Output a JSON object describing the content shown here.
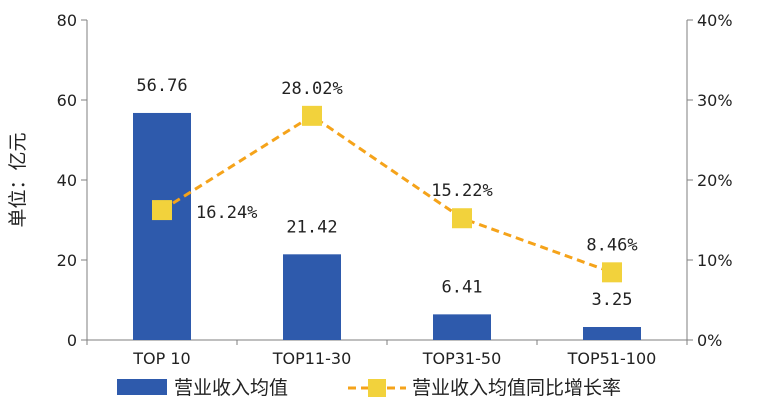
{
  "chart_data": {
    "type": "bar",
    "categories": [
      "TOP 10",
      "TOP11-30",
      "TOP31-50",
      "TOP51-100"
    ],
    "series": [
      {
        "name": "营业收入均值",
        "type": "bar",
        "axis": "left",
        "values": [
          56.76,
          21.42,
          6.41,
          3.25
        ],
        "labels": [
          "56.76",
          "21.42",
          "6.41",
          "3.25"
        ],
        "color": "#2E5AAC"
      },
      {
        "name": "营业收入均值同比增长率",
        "type": "line",
        "axis": "right",
        "line_style": "dashed",
        "values": [
          16.24,
          28.02,
          15.22,
          8.46
        ],
        "labels": [
          "16.24%",
          "28.02%",
          "15.22%",
          "8.46%"
        ],
        "color": "#F5A31A",
        "marker_color": "#F2D23C"
      }
    ],
    "ylabel": "单位：亿元",
    "ylim": [
      0,
      80
    ],
    "yticks": [
      "0",
      "20",
      "40",
      "60",
      "80"
    ],
    "y2lim": [
      0,
      40
    ],
    "y2ticks": [
      "0%",
      "10%",
      "20%",
      "30%",
      "40%"
    ],
    "grid": false,
    "legend": "bottom"
  }
}
